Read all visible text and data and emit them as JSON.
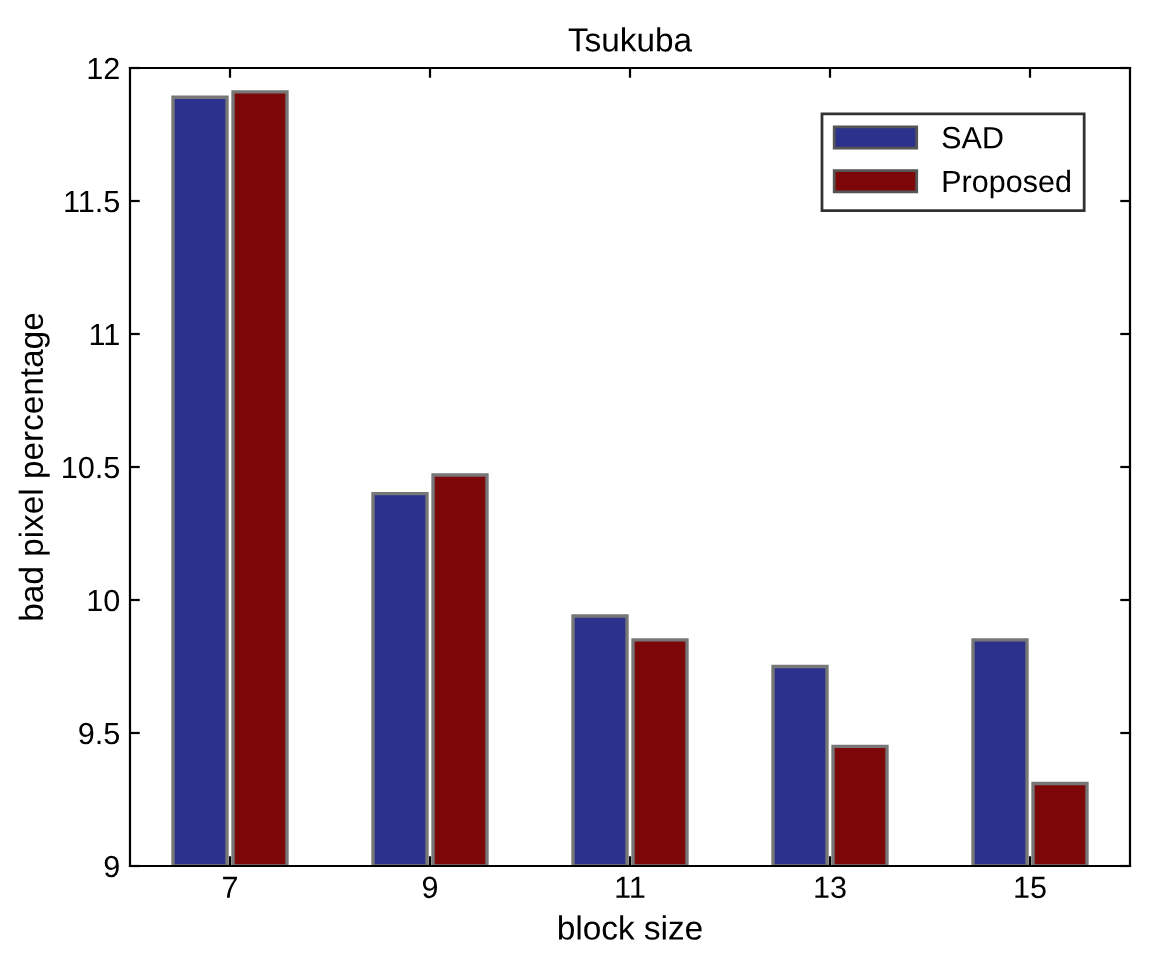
{
  "chart_data": {
    "type": "bar",
    "title": "Tsukuba",
    "xlabel": "block size",
    "ylabel": "bad pixel percentage",
    "categories": [
      "7",
      "9",
      "11",
      "13",
      "15"
    ],
    "series": [
      {
        "name": "SAD",
        "color": "#2b318c",
        "values": [
          11.89,
          10.4,
          9.94,
          9.75,
          9.85
        ]
      },
      {
        "name": "Proposed",
        "color": "#7d0609",
        "values": [
          11.91,
          10.47,
          9.85,
          9.45,
          9.31
        ]
      }
    ],
    "ylim": [
      9,
      12
    ],
    "yticks": [
      9,
      9.5,
      10,
      10.5,
      11,
      11.5,
      12
    ],
    "grid": false,
    "legend": "top right"
  }
}
